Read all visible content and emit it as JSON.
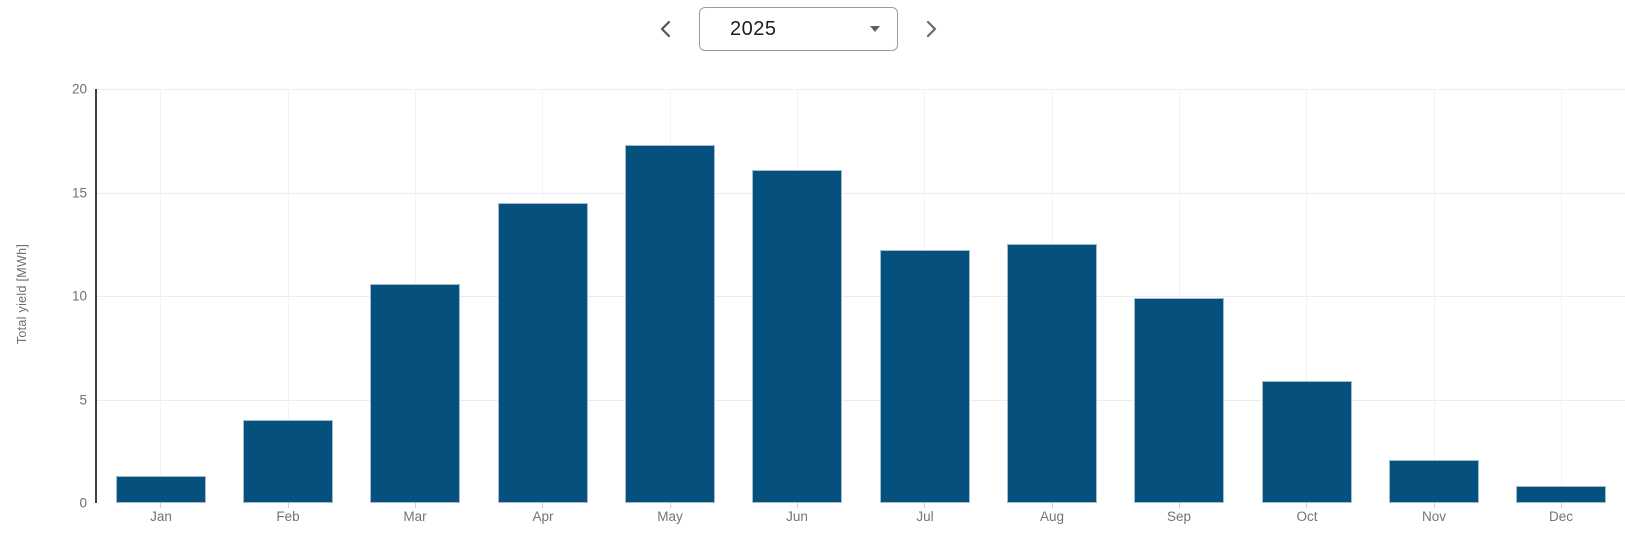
{
  "year_selector": {
    "value": "2025",
    "prev_icon": "chevron-left",
    "next_icon": "chevron-right",
    "dropdown_icon": "caret-down"
  },
  "chart_data": {
    "type": "bar",
    "title": "",
    "categories": [
      "Jan",
      "Feb",
      "Mar",
      "Apr",
      "May",
      "Jun",
      "Jul",
      "Aug",
      "Sep",
      "Oct",
      "Nov",
      "Dec"
    ],
    "values": [
      1.3,
      4.0,
      10.6,
      14.5,
      17.3,
      16.1,
      12.2,
      12.5,
      9.9,
      5.9,
      2.1,
      0.8
    ],
    "xlabel": "",
    "ylabel": "Total yield [MWh]",
    "ylim": [
      0,
      20
    ],
    "yticks": [
      0,
      5,
      10,
      15,
      20
    ],
    "grid": true,
    "legend_position": "none",
    "bar_color": "#05507d",
    "bar_border_color": "#a3bccd",
    "axis_color": "#3d3d3d",
    "grid_color": "#ededed",
    "tick_label_color": "#68727c"
  }
}
